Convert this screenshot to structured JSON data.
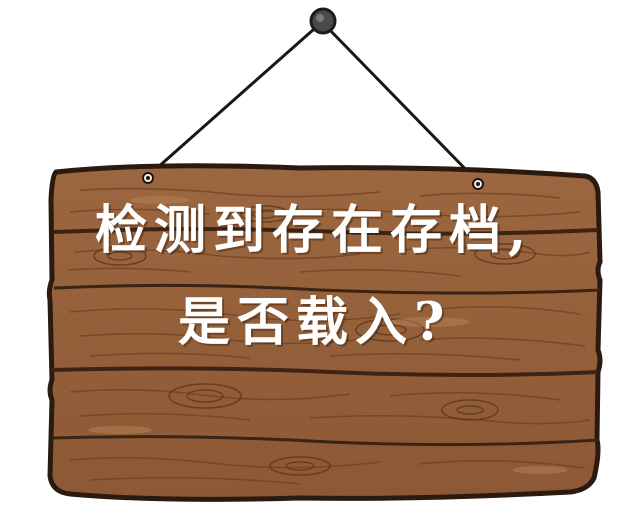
{
  "dialog": {
    "message_line1": "检测到存在存档,",
    "message_line2": "是否载入?"
  },
  "colors": {
    "wood_base": "#9a623c",
    "wood_dark": "#6e4024",
    "wood_light": "#b07a52",
    "outline": "#2b1a10",
    "text": "#ffffff"
  }
}
